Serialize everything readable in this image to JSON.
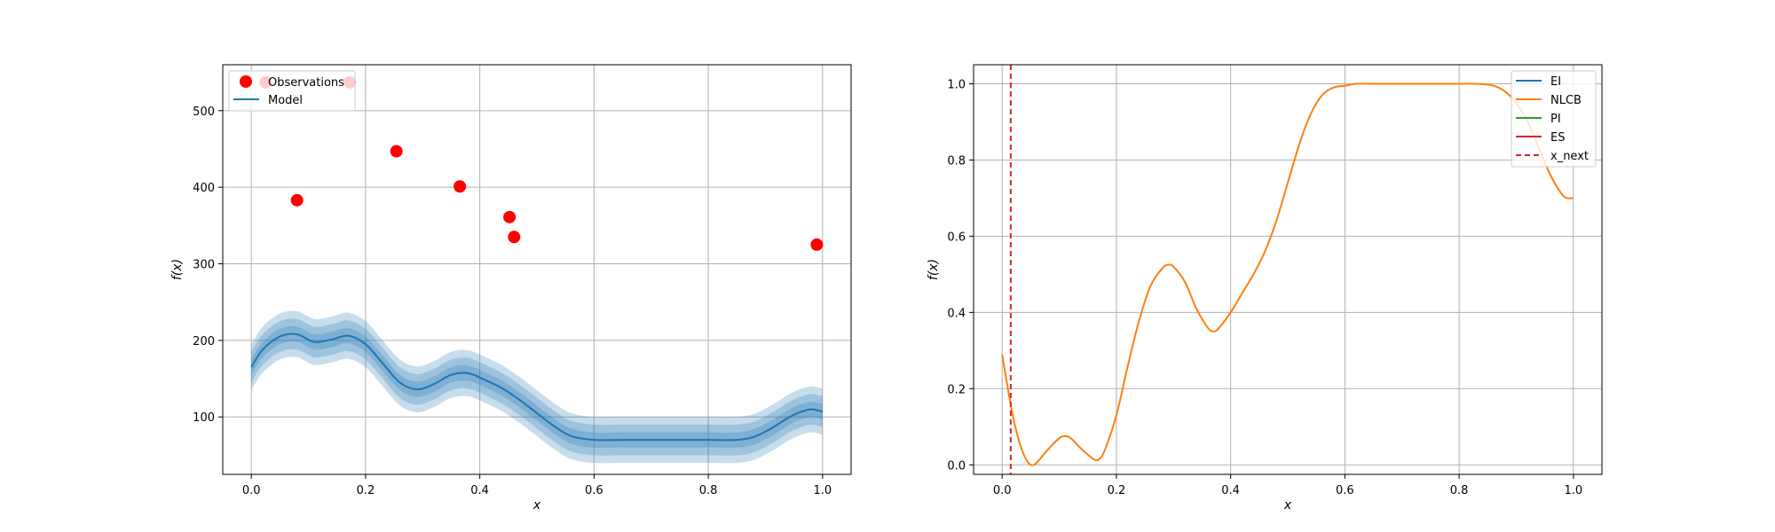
{
  "colors": {
    "observations": "#ff0000",
    "model": "#1f77b4",
    "EI": "#1f77b4",
    "NLCB": "#ff7f0e",
    "PI": "#2ca02c",
    "ES": "#d62728",
    "x_next": "#d62728",
    "grid": "#b0b0b0"
  },
  "chart_data": [
    {
      "type": "scatter+line",
      "xlabel": "x",
      "ylabel": "f(x)",
      "xlim": [
        -0.05,
        1.05
      ],
      "ylim": [
        25,
        560
      ],
      "xticks": [
        0.0,
        0.2,
        0.4,
        0.6,
        0.8,
        1.0
      ],
      "xtick_labels": [
        "0.0",
        "0.2",
        "0.4",
        "0.6",
        "0.8",
        "1.0"
      ],
      "yticks": [
        100,
        200,
        300,
        400,
        500
      ],
      "ytick_labels": [
        "100",
        "200",
        "300",
        "400",
        "500"
      ],
      "grid": true,
      "legend_position": "top-left",
      "legend": [
        "Observations",
        "Model"
      ],
      "observations": {
        "name": "Observations",
        "x": [
          0.025,
          0.08,
          0.172,
          0.254,
          0.365,
          0.452,
          0.46,
          0.99
        ],
        "y": [
          537,
          383,
          537,
          447,
          401,
          361,
          335,
          325
        ]
      },
      "model": {
        "name": "Model",
        "x": [
          0.0,
          0.02,
          0.05,
          0.08,
          0.11,
          0.14,
          0.17,
          0.2,
          0.23,
          0.26,
          0.29,
          0.32,
          0.35,
          0.38,
          0.41,
          0.44,
          0.47,
          0.5,
          0.53,
          0.56,
          0.6,
          0.65,
          0.7,
          0.75,
          0.8,
          0.85,
          0.88,
          0.91,
          0.94,
          0.96,
          0.98,
          1.0
        ],
        "mean": [
          165,
          188,
          205,
          208,
          198,
          201,
          206,
          195,
          170,
          145,
          136,
          143,
          155,
          157,
          148,
          137,
          122,
          105,
          88,
          75,
          70,
          70,
          70,
          70,
          70,
          70,
          74,
          85,
          99,
          106,
          110,
          107
        ],
        "bands": [
          10,
          20,
          30
        ]
      }
    },
    {
      "type": "line",
      "xlabel": "x",
      "ylabel": "f(x)",
      "xlim": [
        -0.05,
        1.05
      ],
      "ylim": [
        -0.025,
        1.05
      ],
      "xticks": [
        0.0,
        0.2,
        0.4,
        0.6,
        0.8,
        1.0
      ],
      "xtick_labels": [
        "0.0",
        "0.2",
        "0.4",
        "0.6",
        "0.8",
        "1.0"
      ],
      "yticks": [
        0.0,
        0.2,
        0.4,
        0.6,
        0.8,
        1.0
      ],
      "ytick_labels": [
        "0.0",
        "0.2",
        "0.4",
        "0.6",
        "0.8",
        "1.0"
      ],
      "grid": true,
      "legend_position": "top-right",
      "legend": [
        "EI",
        "NLCB",
        "PI",
        "ES",
        "x_next"
      ],
      "series": [
        {
          "name": "NLCB",
          "x": [
            0.0,
            0.01,
            0.02,
            0.03,
            0.04,
            0.05,
            0.06,
            0.08,
            0.1,
            0.11,
            0.12,
            0.14,
            0.16,
            0.17,
            0.18,
            0.2,
            0.22,
            0.24,
            0.26,
            0.28,
            0.29,
            0.3,
            0.32,
            0.34,
            0.36,
            0.37,
            0.38,
            0.4,
            0.42,
            0.44,
            0.46,
            0.48,
            0.5,
            0.52,
            0.54,
            0.56,
            0.58,
            0.6,
            0.62,
            0.65,
            0.7,
            0.75,
            0.8,
            0.83,
            0.86,
            0.88,
            0.9,
            0.92,
            0.94,
            0.96,
            0.98,
            0.99,
            1.0
          ],
          "y": [
            0.29,
            0.2,
            0.12,
            0.06,
            0.02,
            0.0,
            0.005,
            0.04,
            0.07,
            0.075,
            0.07,
            0.04,
            0.015,
            0.015,
            0.04,
            0.13,
            0.26,
            0.38,
            0.47,
            0.515,
            0.525,
            0.52,
            0.48,
            0.41,
            0.36,
            0.35,
            0.36,
            0.4,
            0.45,
            0.5,
            0.56,
            0.64,
            0.74,
            0.84,
            0.92,
            0.97,
            0.99,
            0.995,
            1.0,
            1.0,
            1.0,
            1.0,
            1.0,
            1.0,
            0.995,
            0.98,
            0.95,
            0.9,
            0.83,
            0.76,
            0.71,
            0.7,
            0.7
          ]
        },
        {
          "name": "EI",
          "x": [],
          "y": []
        },
        {
          "name": "PI",
          "x": [],
          "y": []
        },
        {
          "name": "ES",
          "x": [],
          "y": []
        }
      ],
      "x_next": 0.015
    }
  ]
}
